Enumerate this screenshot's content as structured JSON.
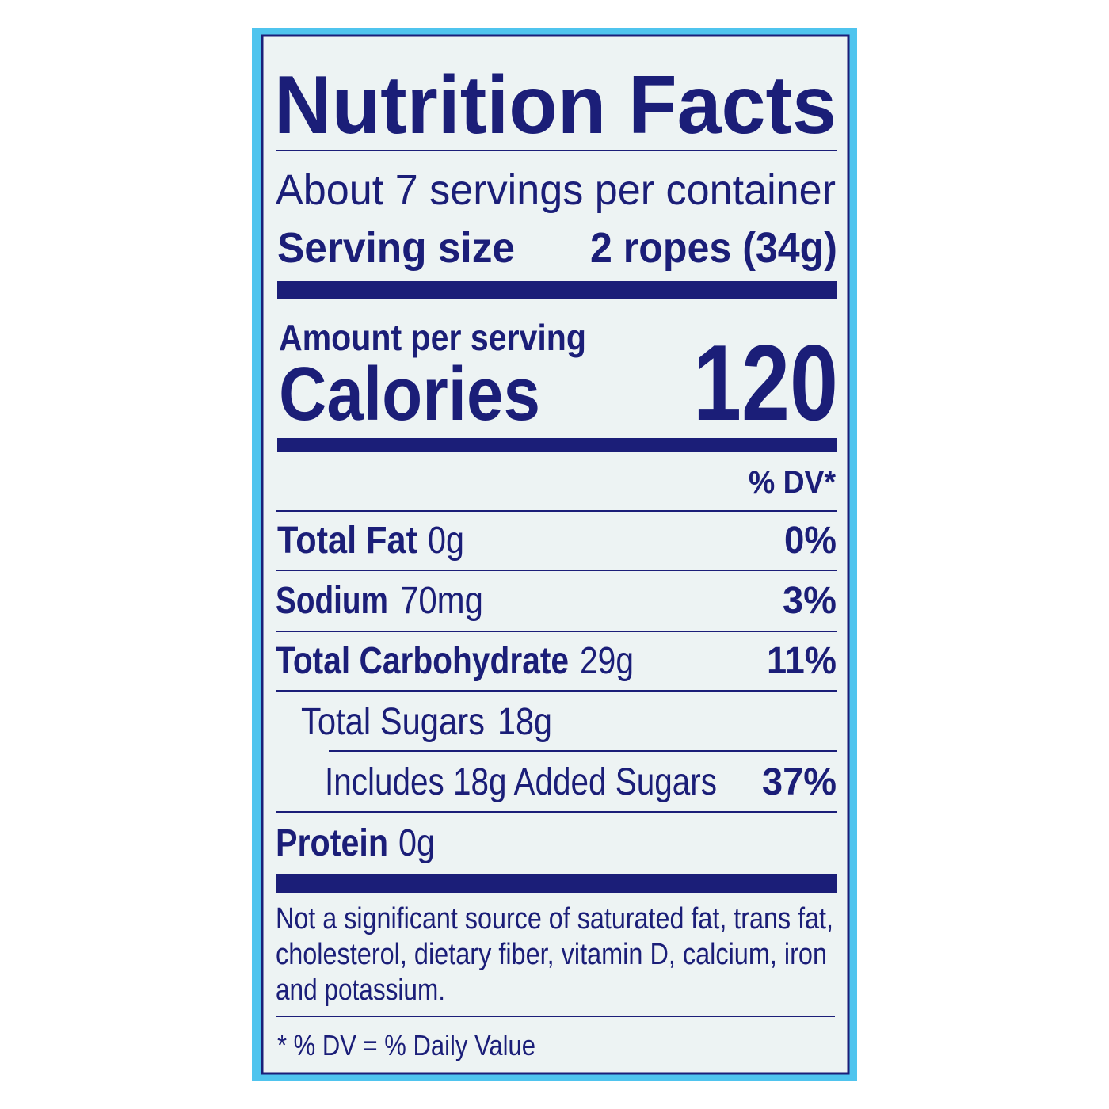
{
  "label": {
    "title": "Nutrition Facts",
    "servings": "About 7 servings per container",
    "serving_size": {
      "label": "Serving size",
      "value": "2 ropes (34g)"
    },
    "amount_per_serving": "Amount per serving",
    "calories": {
      "label": "Calories",
      "value": "120"
    },
    "dv_header": "% DV*",
    "rows": [
      {
        "name": "Total Fat",
        "amount": "0g",
        "dv": "0%"
      },
      {
        "name": "Sodium",
        "amount": "70mg",
        "dv": "3%"
      },
      {
        "name": "Total Carbohydrate",
        "amount": "29g",
        "dv": "11%"
      },
      {
        "name": "Total Sugars",
        "amount": "18g"
      },
      {
        "name": "Includes 18g Added Sugars",
        "dv": "37%"
      },
      {
        "name": "Protein",
        "amount": "0g"
      }
    ],
    "footnote": [
      "Not a significant source of saturated fat, trans fat,",
      "cholesterol, dietary fiber, vitamin D, calcium, iron",
      "and potassium."
    ],
    "dv_note": "* % DV = % Daily Value"
  }
}
